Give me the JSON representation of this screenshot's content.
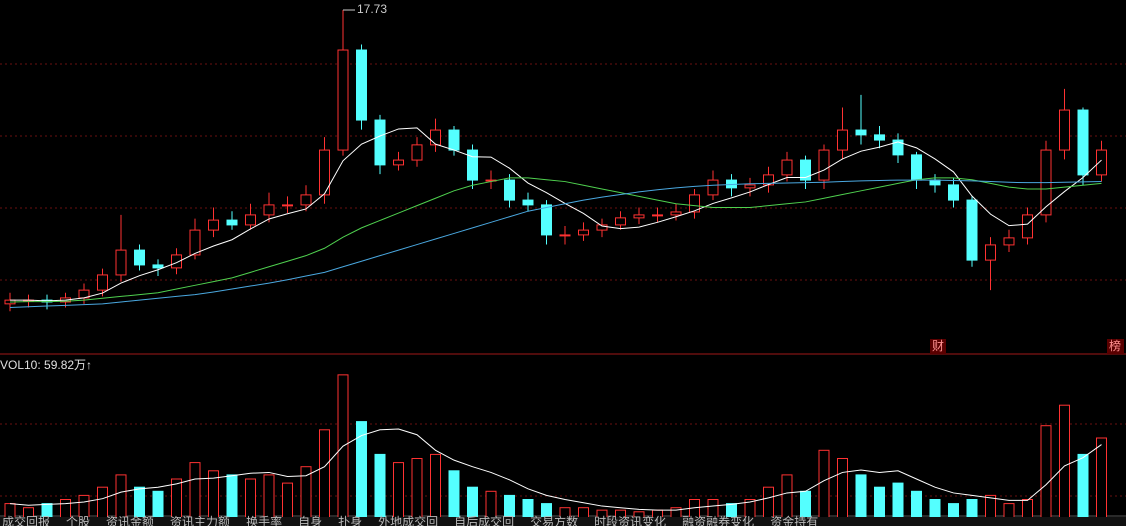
{
  "chart_data": [
    {
      "type": "candlestick",
      "ylim": [
        8.5,
        18
      ],
      "open": [
        9.8,
        9.9,
        9.9,
        9.85,
        9.96,
        10.17,
        10.58,
        11.25,
        10.85,
        10.77,
        11.12,
        11.79,
        12.06,
        11.93,
        12.2,
        12.47,
        12.47,
        12.74,
        13.95,
        16.65,
        14.76,
        13.55,
        13.68,
        14.09,
        14.49,
        13.95,
        13.14,
        13.14,
        12.6,
        12.47,
        11.66,
        11.66,
        11.79,
        11.93,
        12.12,
        12.2,
        12.2,
        12.28,
        12.74,
        13.14,
        12.93,
        13.01,
        13.28,
        13.68,
        13.14,
        13.95,
        14.49,
        14.36,
        14.22,
        13.82,
        13.14,
        13.01,
        12.6,
        10.98,
        11.39,
        11.58,
        12.2,
        13.95,
        15.03,
        13.28
      ],
      "high": [
        10.1,
        10.05,
        10.05,
        10.1,
        10.35,
        10.75,
        12.2,
        11.4,
        11.0,
        11.3,
        12.1,
        12.4,
        12.3,
        12.5,
        12.8,
        12.7,
        13.0,
        14.3,
        17.73,
        16.8,
        14.9,
        13.9,
        14.3,
        14.8,
        14.6,
        14.1,
        13.4,
        13.3,
        12.8,
        12.6,
        11.9,
        12.0,
        12.1,
        12.3,
        12.4,
        12.4,
        12.5,
        12.9,
        13.4,
        13.3,
        13.2,
        13.5,
        13.9,
        13.8,
        14.1,
        15.1,
        15.44,
        14.6,
        14.4,
        13.9,
        13.3,
        13.2,
        12.7,
        11.6,
        11.8,
        12.4,
        14.2,
        15.6,
        15.1,
        14.2
      ],
      "low": [
        9.6,
        9.7,
        9.65,
        9.7,
        9.8,
        10.0,
        10.4,
        10.7,
        10.55,
        10.6,
        11.0,
        11.6,
        11.8,
        11.8,
        12.0,
        12.25,
        12.3,
        12.5,
        13.8,
        14.5,
        13.3,
        13.4,
        13.5,
        13.9,
        13.8,
        12.9,
        12.9,
        12.4,
        12.3,
        11.4,
        11.4,
        11.5,
        11.6,
        11.8,
        11.95,
        12.0,
        12.05,
        12.1,
        12.6,
        12.7,
        12.7,
        12.8,
        13.1,
        12.9,
        12.9,
        13.7,
        14.1,
        14.0,
        13.6,
        12.9,
        12.8,
        12.4,
        10.8,
        10.17,
        11.2,
        11.4,
        12.0,
        13.7,
        13.0,
        13.1
      ],
      "close": [
        9.9,
        9.9,
        9.85,
        9.96,
        10.17,
        10.58,
        11.25,
        10.85,
        10.77,
        11.12,
        11.79,
        12.06,
        11.93,
        12.2,
        12.47,
        12.47,
        12.74,
        13.95,
        16.65,
        14.76,
        13.55,
        13.68,
        14.09,
        14.49,
        13.95,
        13.14,
        13.14,
        12.6,
        12.47,
        11.66,
        11.66,
        11.79,
        11.93,
        12.12,
        12.2,
        12.2,
        12.28,
        12.74,
        13.14,
        12.93,
        13.01,
        13.28,
        13.68,
        13.14,
        13.95,
        14.49,
        14.36,
        14.22,
        13.82,
        13.14,
        13.01,
        12.6,
        10.98,
        11.39,
        11.58,
        12.2,
        13.95,
        15.03,
        13.28,
        13.95
      ],
      "up_color": "#ff3232",
      "down_color": "#54ffff",
      "series": [
        {
          "color": "#ffffff",
          "values": [
            9.9,
            9.9,
            9.88,
            9.9,
            9.96,
            10.09,
            10.36,
            10.56,
            10.72,
            10.91,
            11.16,
            11.36,
            11.53,
            11.82,
            12.09,
            12.23,
            12.36,
            12.77,
            13.66,
            14.11,
            14.33,
            14.52,
            14.55,
            14.11,
            13.95,
            13.77,
            13.76,
            13.46,
            13.06,
            12.8,
            12.51,
            12.24,
            11.9,
            11.83,
            11.87,
            12.0,
            12.15,
            12.31,
            12.51,
            12.66,
            12.82,
            13.02,
            13.21,
            13.21,
            13.41,
            13.71,
            13.92,
            14.03,
            14.17,
            14.01,
            13.71,
            13.36,
            12.71,
            12.22,
            11.91,
            11.95,
            12.42,
            12.83,
            13.21,
            13.68
          ]
        },
        {
          "color": "#4fd14f",
          "values": [
            9.85,
            9.86,
            9.86,
            9.87,
            9.9,
            9.95,
            10.0,
            10.05,
            10.1,
            10.2,
            10.3,
            10.4,
            10.5,
            10.65,
            10.8,
            10.95,
            11.1,
            11.3,
            11.6,
            11.85,
            12.05,
            12.25,
            12.45,
            12.65,
            12.85,
            13.0,
            13.1,
            13.2,
            13.2,
            13.15,
            13.1,
            13.0,
            12.9,
            12.8,
            12.7,
            12.6,
            12.5,
            12.45,
            12.4,
            12.4,
            12.4,
            12.45,
            12.5,
            12.55,
            12.65,
            12.75,
            12.85,
            12.95,
            13.05,
            13.15,
            13.2,
            13.2,
            13.15,
            13.05,
            12.95,
            12.9,
            12.9,
            12.95,
            13.0,
            13.05
          ]
        },
        {
          "color": "#4aa8e0",
          "values": [
            9.7,
            9.72,
            9.74,
            9.76,
            9.78,
            9.8,
            9.85,
            9.9,
            9.95,
            10.0,
            10.05,
            10.12,
            10.2,
            10.28,
            10.36,
            10.45,
            10.55,
            10.65,
            10.8,
            10.95,
            11.1,
            11.25,
            11.4,
            11.55,
            11.7,
            11.85,
            12.0,
            12.15,
            12.3,
            12.4,
            12.5,
            12.6,
            12.68,
            12.75,
            12.82,
            12.88,
            12.93,
            12.97,
            13.0,
            13.02,
            13.04,
            13.05,
            13.06,
            13.07,
            13.08,
            13.1,
            13.12,
            13.13,
            13.14,
            13.14,
            13.14,
            13.13,
            13.12,
            13.1,
            13.08,
            13.07,
            13.07,
            13.08,
            13.09,
            13.1
          ]
        }
      ],
      "annotations": [
        "财",
        "榜"
      ]
    },
    {
      "type": "bar",
      "title": "VOL10: 59.82万↑",
      "ylim": [
        0,
        200
      ],
      "values": [
        20,
        15,
        20,
        25,
        30,
        40,
        55,
        40,
        35,
        50,
        70,
        60,
        55,
        50,
        55,
        45,
        65,
        110,
        177,
        120,
        80,
        70,
        75,
        80,
        60,
        40,
        35,
        30,
        25,
        20,
        15,
        15,
        12,
        12,
        10,
        12,
        15,
        25,
        25,
        20,
        25,
        40,
        55,
        35,
        85,
        75,
        55,
        40,
        45,
        35,
        25,
        20,
        25,
        30,
        20,
        25,
        115,
        140,
        80,
        100
      ],
      "series": [
        {
          "color": "#ffffff",
          "values": [
            20,
            18,
            19,
            20,
            22,
            26,
            34,
            38,
            40,
            44,
            50,
            51,
            54,
            57,
            58,
            53,
            54,
            65,
            90,
            103,
            110,
            111,
            104,
            85,
            73,
            65,
            58,
            49,
            38,
            30,
            25,
            21,
            17,
            15,
            13,
            12,
            12,
            15,
            17,
            19,
            22,
            27,
            33,
            35,
            48,
            58,
            61,
            58,
            60,
            50,
            40,
            33,
            30,
            27,
            24,
            24,
            43,
            66,
            76,
            92
          ]
        }
      ]
    }
  ],
  "tabs": [
    "成交回报",
    "个股",
    "资讯金额",
    "资讯主力额",
    "换手率",
    "自身",
    "扑身",
    "外地成交回",
    "自后成交回",
    "交易方数",
    "时段资讯变化",
    "融资融券变化",
    "资金持有"
  ]
}
